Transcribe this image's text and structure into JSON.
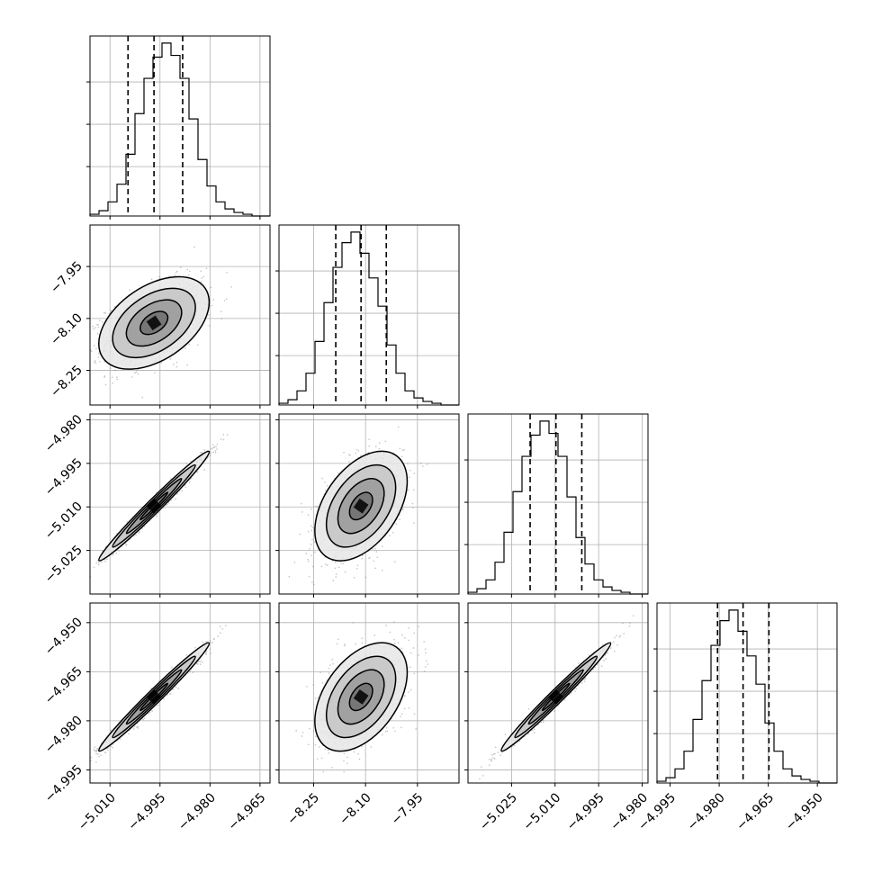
{
  "chart_data": {
    "type": "corner",
    "parameters": [
      {
        "name": "",
        "range": [
          -5.016,
          -4.962
        ],
        "ticks": [
          -5.01,
          -4.995,
          -4.98,
          -4.965
        ],
        "tick_labels": [
          "−5.010",
          "−4.995",
          "−4.980",
          "−4.965"
        ],
        "mean": -4.9968,
        "sd": 0.0072,
        "quantiles": [
          -5.0046,
          -4.9968,
          -4.9882
        ],
        "hist": [
          1,
          3,
          8,
          18,
          35,
          58,
          78,
          90,
          98,
          91,
          78,
          55,
          32,
          17,
          8,
          4,
          2,
          1,
          0,
          0
        ]
      },
      {
        "name": "",
        "range": [
          -8.35,
          -7.83
        ],
        "ticks": [
          -8.25,
          -8.1,
          -7.95
        ],
        "tick_labels": [
          "−8.25",
          "−8.10",
          "−7.95"
        ],
        "mean": -8.113,
        "sd": 0.058,
        "quantiles": [
          -8.186,
          -8.113,
          -8.04
        ],
        "hist": [
          1,
          3,
          8,
          18,
          36,
          58,
          78,
          92,
          98,
          86,
          72,
          56,
          34,
          18,
          8,
          4,
          2,
          1,
          0,
          0
        ]
      },
      {
        "name": "",
        "range": [
          -5.04,
          -4.978
        ],
        "ticks": [
          -5.025,
          -5.01,
          -4.995,
          -4.98
        ],
        "tick_labels": [
          "−5.025",
          "−5.010",
          "−4.995",
          "−4.980"
        ],
        "mean": -5.0097,
        "sd": 0.0082,
        "quantiles": [
          -5.0186,
          -5.0097,
          -5.0008
        ],
        "hist": [
          1,
          3,
          8,
          18,
          35,
          58,
          78,
          90,
          98,
          91,
          78,
          55,
          32,
          17,
          8,
          4,
          2,
          1,
          0,
          0
        ]
      },
      {
        "name": "",
        "range": [
          -4.999,
          -4.944
        ],
        "ticks": [
          -4.995,
          -4.98,
          -4.965,
          -4.95
        ],
        "tick_labels": [
          "−4.995",
          "−4.980",
          "−4.965",
          "−4.950"
        ],
        "mean": -4.9727,
        "sd": 0.0072,
        "quantiles": [
          -4.9805,
          -4.9727,
          -4.9648
        ],
        "hist": [
          1,
          3,
          8,
          18,
          36,
          58,
          78,
          92,
          98,
          86,
          72,
          56,
          34,
          18,
          8,
          4,
          2,
          1,
          0,
          0
        ]
      }
    ],
    "correlations": [
      [
        1.0,
        0.45,
        0.985,
        0.985
      ],
      [
        0.45,
        1.0,
        0.45,
        0.45
      ],
      [
        0.985,
        0.45,
        1.0,
        0.985
      ],
      [
        0.985,
        0.45,
        0.985,
        1.0
      ]
    ],
    "contour_levels_sigma": [
      0.5,
      1.0,
      1.5,
      2.0
    ],
    "grid": true,
    "quantile_line_style": "dashed"
  }
}
